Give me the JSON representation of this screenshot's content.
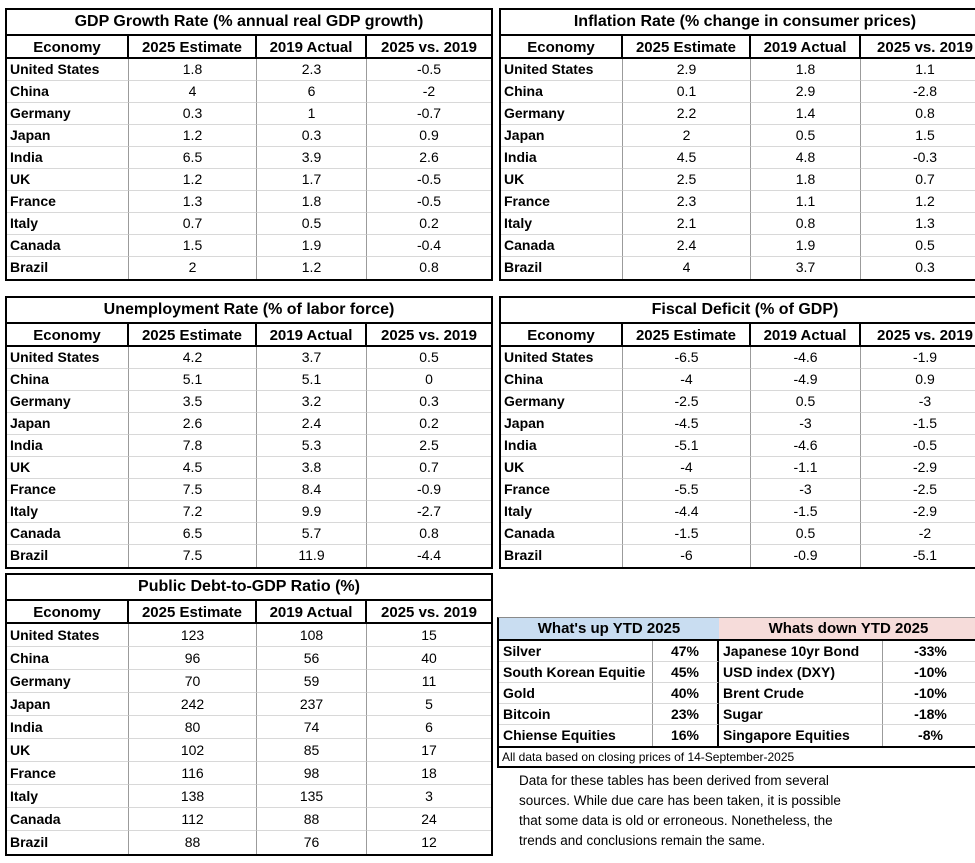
{
  "chart_data": [
    {
      "type": "table",
      "title": "GDP Growth Rate (% annual real GDP growth)",
      "columns": [
        "Economy",
        "2025 Estimate",
        "2019 Actual",
        "2025 vs. 2019"
      ],
      "rows": [
        [
          "United States",
          "1.8",
          "2.3",
          "-0.5"
        ],
        [
          "China",
          "4",
          "6",
          "-2"
        ],
        [
          "Germany",
          "0.3",
          "1",
          "-0.7"
        ],
        [
          "Japan",
          "1.2",
          "0.3",
          "0.9"
        ],
        [
          "India",
          "6.5",
          "3.9",
          "2.6"
        ],
        [
          "UK",
          "1.2",
          "1.7",
          "-0.5"
        ],
        [
          "France",
          "1.3",
          "1.8",
          "-0.5"
        ],
        [
          "Italy",
          "0.7",
          "0.5",
          "0.2"
        ],
        [
          "Canada",
          "1.5",
          "1.9",
          "-0.4"
        ],
        [
          "Brazil",
          "2",
          "1.2",
          "0.8"
        ]
      ]
    },
    {
      "type": "table",
      "title": "Inflation Rate (% change in consumer prices)",
      "columns": [
        "Economy",
        "2025 Estimate",
        "2019 Actual",
        "2025 vs. 2019"
      ],
      "rows": [
        [
          "United States",
          "2.9",
          "1.8",
          "1.1"
        ],
        [
          "China",
          "0.1",
          "2.9",
          "-2.8"
        ],
        [
          "Germany",
          "2.2",
          "1.4",
          "0.8"
        ],
        [
          "Japan",
          "2",
          "0.5",
          "1.5"
        ],
        [
          "India",
          "4.5",
          "4.8",
          "-0.3"
        ],
        [
          "UK",
          "2.5",
          "1.8",
          "0.7"
        ],
        [
          "France",
          "2.3",
          "1.1",
          "1.2"
        ],
        [
          "Italy",
          "2.1",
          "0.8",
          "1.3"
        ],
        [
          "Canada",
          "2.4",
          "1.9",
          "0.5"
        ],
        [
          "Brazil",
          "4",
          "3.7",
          "0.3"
        ]
      ]
    },
    {
      "type": "table",
      "title": "Unemployment Rate (% of labor force)",
      "columns": [
        "Economy",
        "2025 Estimate",
        "2019 Actual",
        "2025 vs. 2019"
      ],
      "rows": [
        [
          "United States",
          "4.2",
          "3.7",
          "0.5"
        ],
        [
          "China",
          "5.1",
          "5.1",
          "0"
        ],
        [
          "Germany",
          "3.5",
          "3.2",
          "0.3"
        ],
        [
          "Japan",
          "2.6",
          "2.4",
          "0.2"
        ],
        [
          "India",
          "7.8",
          "5.3",
          "2.5"
        ],
        [
          "UK",
          "4.5",
          "3.8",
          "0.7"
        ],
        [
          "France",
          "7.5",
          "8.4",
          "-0.9"
        ],
        [
          "Italy",
          "7.2",
          "9.9",
          "-2.7"
        ],
        [
          "Canada",
          "6.5",
          "5.7",
          "0.8"
        ],
        [
          "Brazil",
          "7.5",
          "11.9",
          "-4.4"
        ]
      ]
    },
    {
      "type": "table",
      "title": "Fiscal Deficit (% of GDP)",
      "columns": [
        "Economy",
        "2025 Estimate",
        "2019 Actual",
        "2025 vs. 2019"
      ],
      "rows": [
        [
          "United States",
          "-6.5",
          "-4.6",
          "-1.9"
        ],
        [
          "China",
          "-4",
          "-4.9",
          "0.9"
        ],
        [
          "Germany",
          "-2.5",
          "0.5",
          "-3"
        ],
        [
          "Japan",
          "-4.5",
          "-3",
          "-1.5"
        ],
        [
          "India",
          "-5.1",
          "-4.6",
          "-0.5"
        ],
        [
          "UK",
          "-4",
          "-1.1",
          "-2.9"
        ],
        [
          "France",
          "-5.5",
          "-3",
          "-2.5"
        ],
        [
          "Italy",
          "-4.4",
          "-1.5",
          "-2.9"
        ],
        [
          "Canada",
          "-1.5",
          "0.5",
          "-2"
        ],
        [
          "Brazil",
          "-6",
          "-0.9",
          "-5.1"
        ]
      ]
    },
    {
      "type": "table",
      "title": "Public Debt-to-GDP Ratio (%)",
      "columns": [
        "Economy",
        "2025 Estimate",
        "2019 Actual",
        "2025 vs. 2019"
      ],
      "rows": [
        [
          "United States",
          "123",
          "108",
          "15"
        ],
        [
          "China",
          "96",
          "56",
          "40"
        ],
        [
          "Germany",
          "70",
          "59",
          "11"
        ],
        [
          "Japan",
          "242",
          "237",
          "5"
        ],
        [
          "India",
          "80",
          "74",
          "6"
        ],
        [
          "UK",
          "102",
          "85",
          "17"
        ],
        [
          "France",
          "116",
          "98",
          "18"
        ],
        [
          "Italy",
          "138",
          "135",
          "3"
        ],
        [
          "Canada",
          "112",
          "88",
          "24"
        ],
        [
          "Brazil",
          "88",
          "76",
          "12"
        ]
      ]
    },
    {
      "type": "table",
      "title": "What's up YTD 2025",
      "rows": [
        [
          "Silver",
          "47%"
        ],
        [
          "South Korean Equitie",
          "45%"
        ],
        [
          "Gold",
          "40%"
        ],
        [
          "Bitcoin",
          "23%"
        ],
        [
          "Chiense Equities",
          "16%"
        ]
      ]
    },
    {
      "type": "table",
      "title": "Whats down YTD 2025",
      "rows": [
        [
          "Japanese 10yr Bond",
          "-33%"
        ],
        [
          "USD index (DXY)",
          "-10%"
        ],
        [
          "Brent Crude",
          "-10%"
        ],
        [
          "Sugar",
          "-18%"
        ],
        [
          "Singapore Equities",
          "-8%"
        ]
      ]
    }
  ],
  "ytd": {
    "note": "All data based on closing prices of 14-September-2025",
    "disclaimer_lines": [
      "Data for these tables has been derived from several",
      "sources. While due care has been taken, it is possible",
      "that some data is old or erroneous. Nonetheless, the",
      "trends and conclusions remain the same."
    ]
  },
  "colors": {
    "up_header_bg": "#c9ddf1",
    "down_header_bg": "#f6dcda",
    "thick_border": "#000000",
    "grid_vertical": "#9b9b9b",
    "grid_horizontal": "#d8d8d8"
  }
}
